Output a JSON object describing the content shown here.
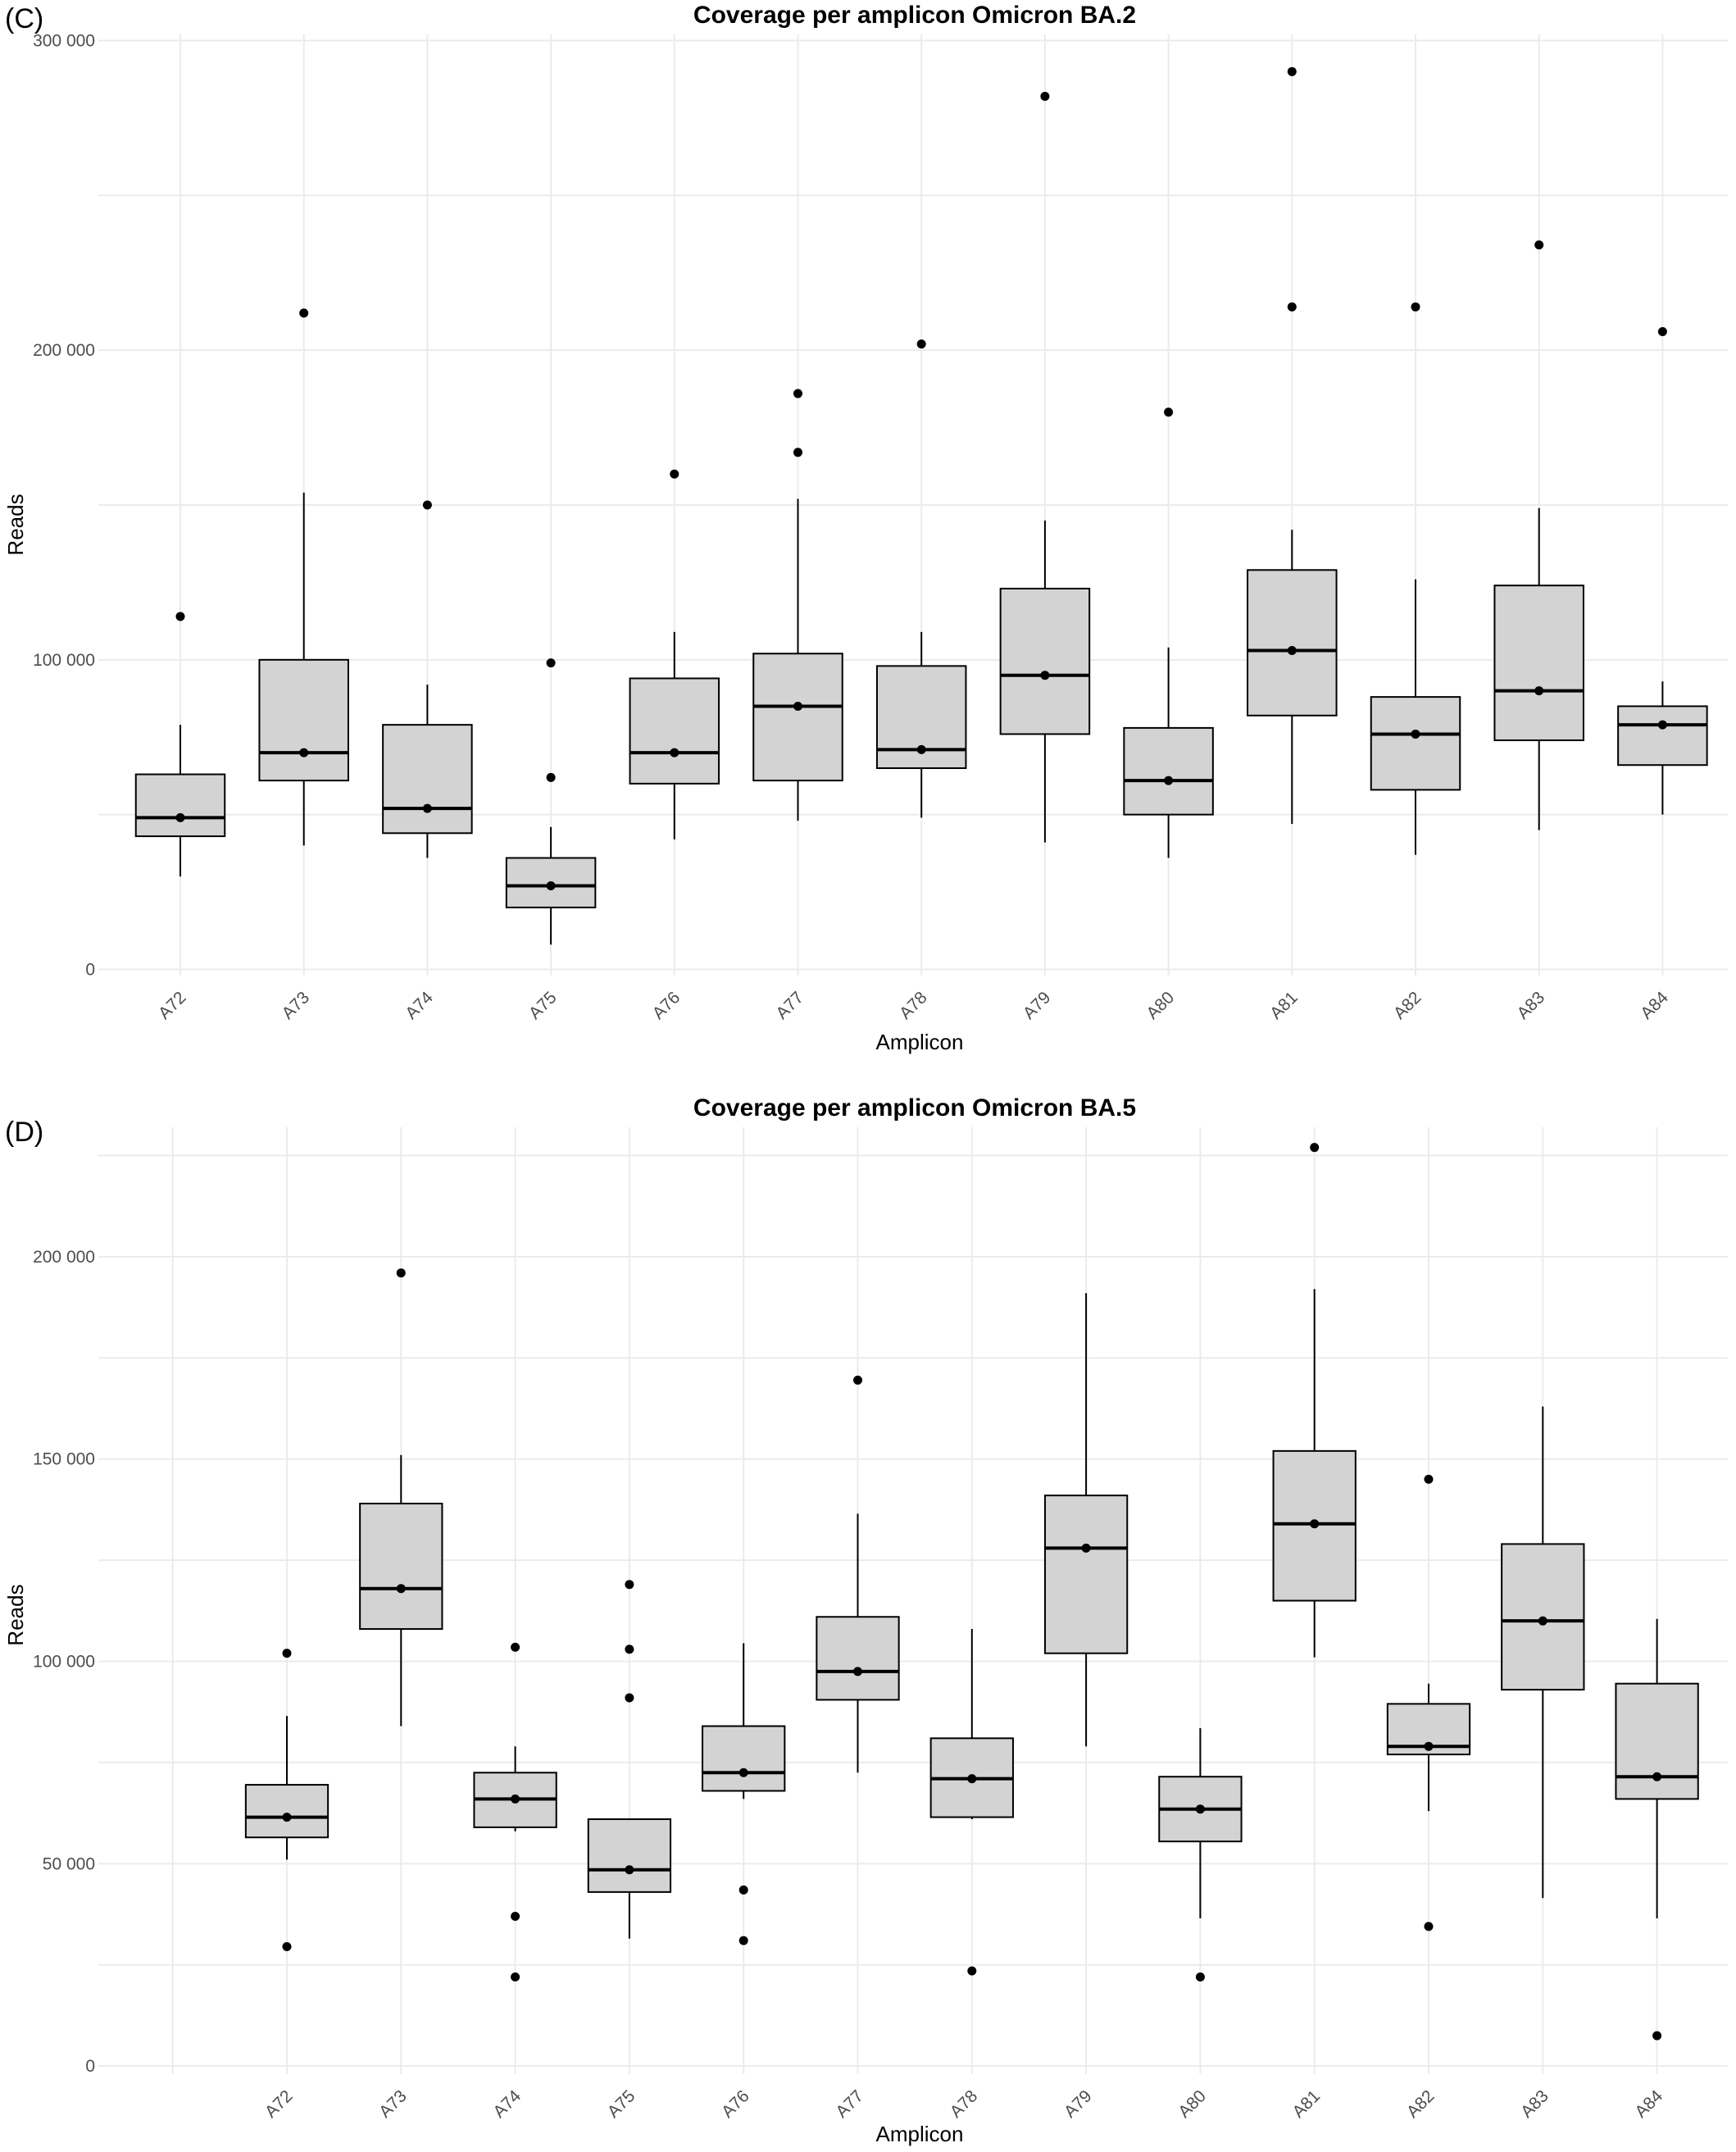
{
  "chart_data": [
    {
      "type": "box",
      "panel_label": "(C)",
      "title": "Coverage per amplicon Omicron BA.2",
      "xlabel": "Amplicon",
      "ylabel": "Reads",
      "ylim": [
        -2000,
        302000
      ],
      "yticks": [
        0,
        100000,
        200000,
        300000
      ],
      "ytick_labels": [
        "0",
        "100 000",
        "200 000",
        "300 000"
      ],
      "grid": true,
      "box_color": "#d3d3d3",
      "categories": [
        "A72",
        "A73",
        "A74",
        "A75",
        "A76",
        "A77",
        "A78",
        "A79",
        "A80",
        "A81",
        "A82",
        "A83",
        "A84"
      ],
      "boxes": [
        {
          "category": "A72",
          "whislo": 30000,
          "q1": 43000,
          "med": 49000,
          "q3": 63000,
          "whishi": 79000,
          "mean": 49000,
          "outliers": [
            114000
          ]
        },
        {
          "category": "A73",
          "whislo": 40000,
          "q1": 61000,
          "med": 70000,
          "q3": 100000,
          "whishi": 154000,
          "mean": 70000,
          "outliers": [
            212000
          ]
        },
        {
          "category": "A74",
          "whislo": 36000,
          "q1": 44000,
          "med": 52000,
          "q3": 79000,
          "whishi": 92000,
          "mean": 52000,
          "outliers": [
            150000
          ]
        },
        {
          "category": "A75",
          "whislo": 8000,
          "q1": 20000,
          "med": 27000,
          "q3": 36000,
          "whishi": 46000,
          "mean": 27000,
          "outliers": [
            99000,
            62000
          ]
        },
        {
          "category": "A76",
          "whislo": 42000,
          "q1": 60000,
          "med": 70000,
          "q3": 94000,
          "whishi": 109000,
          "mean": 70000,
          "outliers": [
            160000
          ]
        },
        {
          "category": "A77",
          "whislo": 48000,
          "q1": 61000,
          "med": 85000,
          "q3": 102000,
          "whishi": 152000,
          "mean": 85000,
          "outliers": [
            186000,
            167000
          ]
        },
        {
          "category": "A78",
          "whislo": 49000,
          "q1": 65000,
          "med": 71000,
          "q3": 98000,
          "whishi": 109000,
          "mean": 71000,
          "outliers": [
            202000
          ]
        },
        {
          "category": "A79",
          "whislo": 41000,
          "q1": 76000,
          "med": 95000,
          "q3": 123000,
          "whishi": 145000,
          "mean": 95000,
          "outliers": [
            282000
          ]
        },
        {
          "category": "A80",
          "whislo": 36000,
          "q1": 50000,
          "med": 61000,
          "q3": 78000,
          "whishi": 104000,
          "mean": 61000,
          "outliers": [
            180000
          ]
        },
        {
          "category": "A81",
          "whislo": 47000,
          "q1": 82000,
          "med": 103000,
          "q3": 129000,
          "whishi": 142000,
          "mean": 103000,
          "outliers": [
            290000,
            214000
          ]
        },
        {
          "category": "A82",
          "whislo": 37000,
          "q1": 58000,
          "med": 76000,
          "q3": 88000,
          "whishi": 126000,
          "mean": 76000,
          "outliers": [
            214000
          ]
        },
        {
          "category": "A83",
          "whislo": 45000,
          "q1": 74000,
          "med": 90000,
          "q3": 124000,
          "whishi": 149000,
          "mean": 90000,
          "outliers": [
            234000
          ]
        },
        {
          "category": "A84",
          "whislo": 50000,
          "q1": 66000,
          "med": 79000,
          "q3": 85000,
          "whishi": 93000,
          "mean": 79000,
          "outliers": [
            206000
          ]
        }
      ]
    },
    {
      "type": "box",
      "panel_label": "(D)",
      "title": "Coverage per amplicon Omicron BA.5",
      "xlabel": "Amplicon",
      "ylabel": "Reads",
      "ylim": [
        -2000,
        232000
      ],
      "yticks": [
        0,
        50000,
        100000,
        150000,
        200000
      ],
      "ytick_labels": [
        "0",
        "50 000",
        "100 000",
        "150 000",
        "200 000"
      ],
      "grid": true,
      "box_color": "#d3d3d3",
      "categories": [
        "A72",
        "A73",
        "A74",
        "A75",
        "A76",
        "A77",
        "A78",
        "A79",
        "A80",
        "A81",
        "A82",
        "A83",
        "A84"
      ],
      "boxes": [
        {
          "category": "A72",
          "whislo": 51000,
          "q1": 56500,
          "med": 61500,
          "q3": 69500,
          "whishi": 86500,
          "mean": 61500,
          "outliers": [
            102000,
            29500
          ]
        },
        {
          "category": "A73",
          "whislo": 84000,
          "q1": 108000,
          "med": 118000,
          "q3": 139000,
          "whishi": 151000,
          "mean": 118000,
          "outliers": [
            196000
          ]
        },
        {
          "category": "A74",
          "whislo": 58000,
          "q1": 59000,
          "med": 66000,
          "q3": 72500,
          "whishi": 79000,
          "mean": 66000,
          "outliers": [
            103500,
            37000,
            22000
          ]
        },
        {
          "category": "A75",
          "whislo": 31500,
          "q1": 43000,
          "med": 48500,
          "q3": 61000,
          "whishi": 61000,
          "mean": 48500,
          "outliers": [
            119000,
            103000,
            91000
          ]
        },
        {
          "category": "A76",
          "whislo": 66000,
          "q1": 68000,
          "med": 72500,
          "q3": 84000,
          "whishi": 104500,
          "mean": 72500,
          "outliers": [
            43500,
            31000
          ]
        },
        {
          "category": "A77",
          "whislo": 72500,
          "q1": 90500,
          "med": 97500,
          "q3": 111000,
          "whishi": 136500,
          "mean": 97500,
          "outliers": [
            169500
          ]
        },
        {
          "category": "A78",
          "whislo": 61000,
          "q1": 61500,
          "med": 71000,
          "q3": 81000,
          "whishi": 108000,
          "mean": 71000,
          "outliers": [
            23500
          ]
        },
        {
          "category": "A79",
          "whislo": 79000,
          "q1": 102000,
          "med": 128000,
          "q3": 141000,
          "whishi": 191000,
          "mean": 128000,
          "outliers": []
        },
        {
          "category": "A80",
          "whislo": 36500,
          "q1": 55500,
          "med": 63500,
          "q3": 71500,
          "whishi": 83500,
          "mean": 63500,
          "outliers": [
            22000
          ]
        },
        {
          "category": "A81",
          "whislo": 101000,
          "q1": 115000,
          "med": 134000,
          "q3": 152000,
          "whishi": 192000,
          "mean": 134000,
          "outliers": [
            227000
          ]
        },
        {
          "category": "A82",
          "whislo": 63000,
          "q1": 77000,
          "med": 79000,
          "q3": 89500,
          "whishi": 94500,
          "mean": 79000,
          "outliers": [
            145000,
            34500
          ]
        },
        {
          "category": "A83",
          "whislo": 41500,
          "q1": 93000,
          "med": 110000,
          "q3": 129000,
          "whishi": 163000,
          "mean": 110000,
          "outliers": []
        },
        {
          "category": "A84",
          "whislo": 36500,
          "q1": 66000,
          "med": 71500,
          "q3": 94500,
          "whishi": 110500,
          "mean": 71500,
          "outliers": [
            7500
          ]
        }
      ]
    }
  ]
}
